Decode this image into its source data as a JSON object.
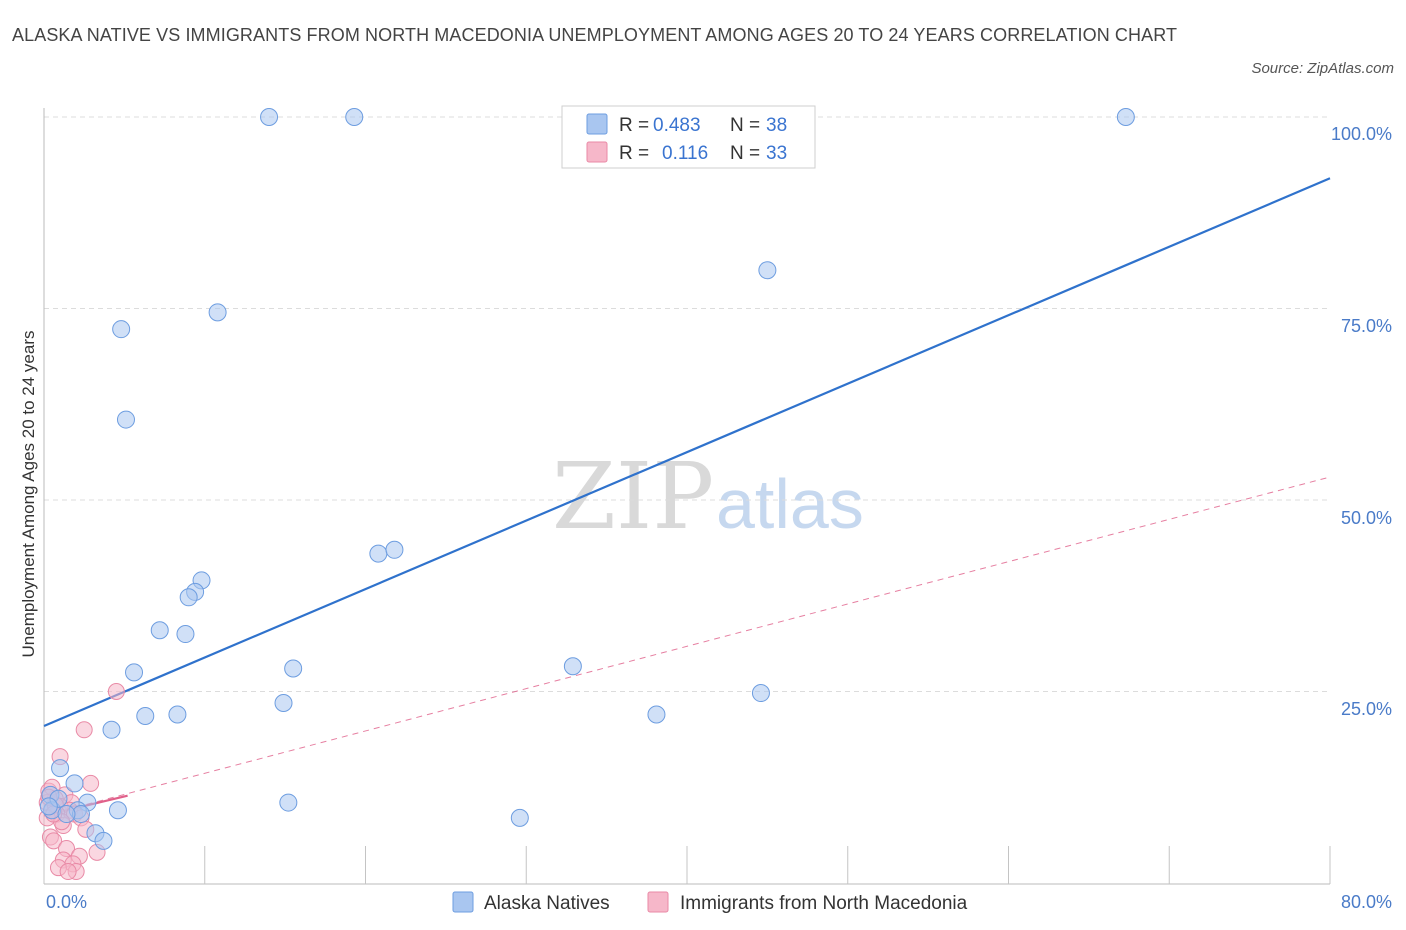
{
  "header": {
    "title": "ALASKA NATIVE VS IMMIGRANTS FROM NORTH MACEDONIA UNEMPLOYMENT AMONG AGES 20 TO 24 YEARS CORRELATION CHART",
    "source": "Source: ZipAtlas.com"
  },
  "watermark": {
    "zip": "ZIP",
    "atlas": "atlas"
  },
  "colors": {
    "blue_fill": "#a9c6f0",
    "blue_stroke": "#6d9de0",
    "blue_line": "#2f72cc",
    "pink_fill": "#f6b7c9",
    "pink_stroke": "#e98aa6",
    "pink_line": "#e0608a",
    "grid": "#dcdcdc",
    "tick_text": "#4a7bc8"
  },
  "legend": {
    "rows": [
      {
        "r_label": "R =",
        "r_value": "0.483",
        "n_label": "N =",
        "n_value": "38"
      },
      {
        "r_label": "R =",
        "r_value": "0.116",
        "n_label": "N =",
        "n_value": "33"
      }
    ]
  },
  "chart_data": {
    "type": "scatter",
    "title": "ALASKA NATIVE VS IMMIGRANTS FROM NORTH MACEDONIA UNEMPLOYMENT AMONG AGES 20 TO 24 YEARS CORRELATION CHART",
    "xlabel": "",
    "ylabel": "Unemployment Among Ages 20 to 24 years",
    "xlim": [
      0,
      80
    ],
    "ylim": [
      0,
      100
    ],
    "x_tick_labels": [
      "0.0%",
      "80.0%"
    ],
    "y_tick_labels": [
      "100.0%",
      "75.0%",
      "50.0%",
      "25.0%"
    ],
    "y_ticks": [
      100,
      75,
      50,
      25
    ],
    "grid": true,
    "legend_position": "top-center",
    "series": [
      {
        "name": "Alaska Natives",
        "color": "blue",
        "r": 0.483,
        "n": 38,
        "trend": {
          "x0": 0,
          "y0": 20.5,
          "x1": 80,
          "y1": 92.0,
          "style": "solid"
        },
        "points": [
          [
            14.0,
            100.0
          ],
          [
            19.3,
            100.0
          ],
          [
            67.3,
            100.0
          ],
          [
            45.0,
            80.0
          ],
          [
            10.8,
            74.5
          ],
          [
            4.8,
            72.3
          ],
          [
            5.1,
            60.5
          ],
          [
            20.8,
            43.0
          ],
          [
            21.8,
            43.5
          ],
          [
            9.8,
            39.5
          ],
          [
            9.4,
            38.0
          ],
          [
            9.0,
            37.3
          ],
          [
            7.2,
            33.0
          ],
          [
            8.8,
            32.5
          ],
          [
            15.5,
            28.0
          ],
          [
            5.6,
            27.5
          ],
          [
            32.9,
            28.3
          ],
          [
            14.9,
            23.5
          ],
          [
            44.6,
            24.8
          ],
          [
            8.3,
            22.0
          ],
          [
            6.3,
            21.8
          ],
          [
            38.1,
            22.0
          ],
          [
            4.2,
            20.0
          ],
          [
            1.0,
            15.0
          ],
          [
            1.9,
            13.0
          ],
          [
            0.4,
            11.5
          ],
          [
            2.7,
            10.5
          ],
          [
            15.2,
            10.5
          ],
          [
            2.1,
            9.5
          ],
          [
            4.6,
            9.5
          ],
          [
            2.3,
            9.0
          ],
          [
            29.6,
            8.5
          ],
          [
            3.2,
            6.5
          ],
          [
            3.7,
            5.5
          ],
          [
            0.5,
            9.5
          ],
          [
            0.9,
            11.0
          ],
          [
            1.4,
            9.0
          ],
          [
            0.3,
            10.0
          ]
        ]
      },
      {
        "name": "Immigrants from North Macedonia",
        "color": "pink",
        "r": 0.116,
        "n": 33,
        "trend": {
          "x0": 0,
          "y0": 8.8,
          "x1": 80,
          "y1": 53.0,
          "style": "dashed"
        },
        "points": [
          [
            4.5,
            25.0
          ],
          [
            2.5,
            20.0
          ],
          [
            1.0,
            16.5
          ],
          [
            2.9,
            13.0
          ],
          [
            0.3,
            12.0
          ],
          [
            1.3,
            11.5
          ],
          [
            0.7,
            11.0
          ],
          [
            1.7,
            10.5
          ],
          [
            0.2,
            10.5
          ],
          [
            1.0,
            10.0
          ],
          [
            1.6,
            9.5
          ],
          [
            0.5,
            9.5
          ],
          [
            1.9,
            9.0
          ],
          [
            0.8,
            9.0
          ],
          [
            0.2,
            8.5
          ],
          [
            2.3,
            8.5
          ],
          [
            1.2,
            7.5
          ],
          [
            2.6,
            7.0
          ],
          [
            0.4,
            6.0
          ],
          [
            0.6,
            5.5
          ],
          [
            1.4,
            4.5
          ],
          [
            3.3,
            4.0
          ],
          [
            2.2,
            3.5
          ],
          [
            1.2,
            3.0
          ],
          [
            1.8,
            2.5
          ],
          [
            0.9,
            2.0
          ],
          [
            2.0,
            1.5
          ],
          [
            1.5,
            1.5
          ],
          [
            0.5,
            12.5
          ],
          [
            1.1,
            8.0
          ],
          [
            0.7,
            10.2
          ],
          [
            0.3,
            11.2
          ],
          [
            0.6,
            9.0
          ]
        ]
      }
    ]
  }
}
